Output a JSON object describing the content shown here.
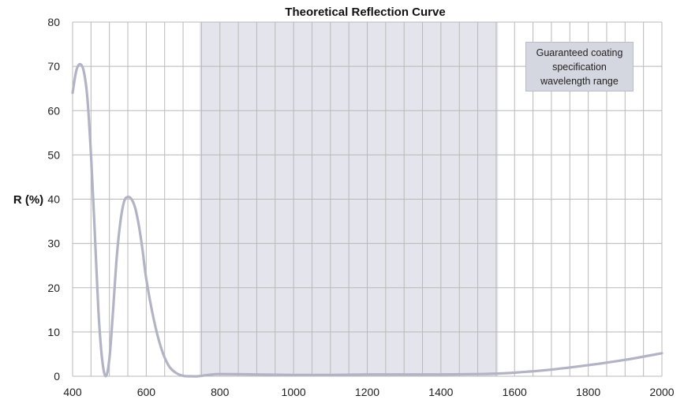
{
  "chart_data": {
    "type": "line",
    "title": "Theoretical Reflection Curve",
    "ylabel": "R (%)",
    "xlabel": "",
    "xlim": [
      400,
      2000
    ],
    "ylim": [
      0,
      80
    ],
    "x_ticks": [
      "400",
      "600",
      "800",
      "1000",
      "1200",
      "1400",
      "1600",
      "1800",
      "2000"
    ],
    "y_ticks": [
      "0",
      "10",
      "20",
      "30",
      "40",
      "50",
      "60",
      "70",
      "80"
    ],
    "grid": true,
    "highlight_band": {
      "x_start": 745,
      "x_end": 1555,
      "color": "#e4e5ec"
    },
    "annotation": "Guaranteed coating specification wavelength range",
    "line_color": "#b2b4c5",
    "series": [
      {
        "x": [
          400,
          410,
          420,
          430,
          440,
          450,
          460,
          470,
          480,
          490,
          500,
          510,
          520,
          530,
          540,
          550,
          560,
          570,
          580,
          590,
          600,
          620,
          640,
          660,
          680,
          700,
          720,
          740,
          760,
          780,
          800,
          900,
          1000,
          1100,
          1200,
          1300,
          1400,
          1500,
          1550,
          1600,
          1700,
          1800,
          1900,
          2000
        ],
        "y": [
          64,
          69,
          70.5,
          69,
          63,
          50,
          33,
          15,
          4,
          0,
          4,
          15,
          27,
          35,
          39.5,
          40.5,
          40,
          38,
          34,
          28.5,
          22,
          13,
          6.5,
          2.5,
          0.8,
          0.1,
          0,
          0,
          0.2,
          0.4,
          0.5,
          0.4,
          0.3,
          0.3,
          0.4,
          0.4,
          0.4,
          0.5,
          0.6,
          0.8,
          1.5,
          2.5,
          3.7,
          5.2
        ]
      }
    ]
  }
}
